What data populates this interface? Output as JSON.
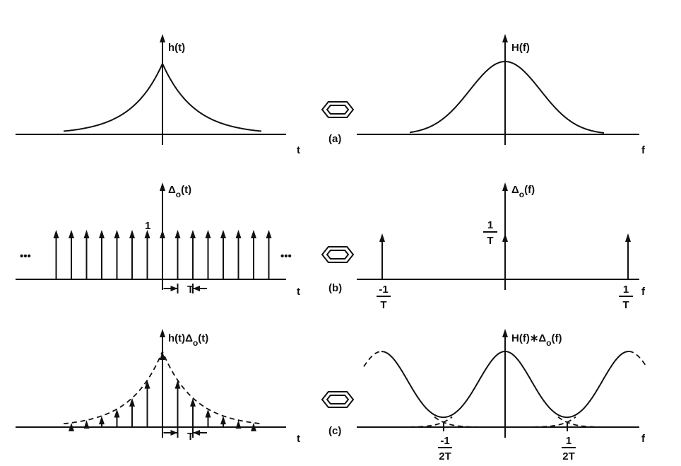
{
  "panels": [
    {
      "tag": "(a)",
      "left": {
        "label": "h(t)",
        "axis": "t"
      },
      "right": {
        "label": "H(f)",
        "axis": "f"
      }
    },
    {
      "tag": "(b)",
      "left": {
        "label": {
          "pre": "Δ",
          "sub": "o",
          "post": "(t)"
        },
        "axis": "t",
        "height_label": "1",
        "dots": "•••",
        "period": "T"
      },
      "right": {
        "label": {
          "pre": "Δ",
          "sub": "o",
          "post": "(f)"
        },
        "axis": "f",
        "center": {
          "num": "1",
          "den": "T"
        },
        "left_tick": {
          "num": "-1",
          "den": "T"
        },
        "right_tick": {
          "num": "1",
          "den": "T"
        }
      }
    },
    {
      "tag": "(c)",
      "left": {
        "label": {
          "pre": "h(t)Δ",
          "sub": "o",
          "post": "(t)"
        },
        "axis": "t",
        "period": "T"
      },
      "right": {
        "label": {
          "pre": "H(f)∗Δ",
          "sub": "o",
          "post": "(f)"
        },
        "axis": "f",
        "left_tick": {
          "num": "-1",
          "den": "2T"
        },
        "right_tick": {
          "num": "1",
          "den": "2T"
        }
      }
    }
  ]
}
